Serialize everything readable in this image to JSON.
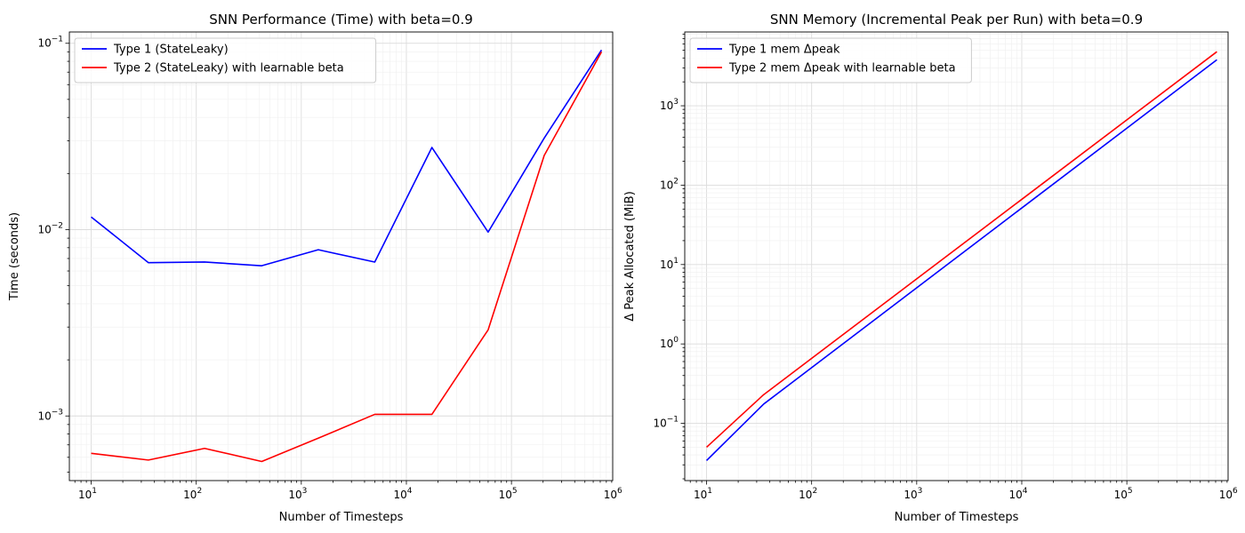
{
  "chart_data": [
    {
      "type": "line",
      "title": "SNN Performance (Time) with beta=0.9",
      "xlabel": "Number of Timesteps",
      "ylabel": "Time (seconds)",
      "xscale": "log",
      "yscale": "log",
      "xlim": [
        6.2,
        920000
      ],
      "ylim": [
        0.00045,
        0.115
      ],
      "grid": true,
      "legend_position": "top-left",
      "xticks": [
        {
          "value": 10,
          "base": "10",
          "exp": "1"
        },
        {
          "value": 100,
          "base": "10",
          "exp": "2"
        },
        {
          "value": 1000,
          "base": "10",
          "exp": "3"
        },
        {
          "value": 10000,
          "base": "10",
          "exp": "4"
        },
        {
          "value": 100000,
          "base": "10",
          "exp": "5"
        },
        {
          "value": 1000000,
          "base": "10",
          "exp": "6"
        }
      ],
      "yticks": [
        {
          "value": 0.001,
          "base": "10",
          "exp": "−3"
        },
        {
          "value": 0.01,
          "base": "10",
          "exp": "−2"
        },
        {
          "value": 0.1,
          "base": "10",
          "exp": "−1"
        }
      ],
      "series": [
        {
          "name": "Type 1 (StateLeaky)",
          "color": "#0000ff",
          "x": [
            10,
            35,
            120,
            420,
            1450,
            5000,
            17500,
            60000,
            205000,
            720000
          ],
          "y": [
            0.0117,
            0.00665,
            0.0067,
            0.0064,
            0.0078,
            0.0067,
            0.0276,
            0.0097,
            0.031,
            0.092
          ]
        },
        {
          "name": "Type 2 (StateLeaky) with learnable beta",
          "color": "#ff0000",
          "x": [
            10,
            35,
            120,
            420,
            1450,
            5000,
            17500,
            60000,
            205000,
            720000
          ],
          "y": [
            0.00063,
            0.00058,
            0.00067,
            0.00057,
            0.00076,
            0.00102,
            0.00102,
            0.0029,
            0.025,
            0.09
          ]
        }
      ]
    },
    {
      "type": "line",
      "title": "SNN Memory (Incremental Peak per Run) with beta=0.9",
      "xlabel": "Number of Timesteps",
      "ylabel": "Δ Peak Allocated (MiB)",
      "xscale": "log",
      "yscale": "log",
      "xlim": [
        6.2,
        920000
      ],
      "ylim": [
        0.019,
        8500
      ],
      "grid": true,
      "legend_position": "top-left",
      "xticks": [
        {
          "value": 10,
          "base": "10",
          "exp": "1"
        },
        {
          "value": 100,
          "base": "10",
          "exp": "2"
        },
        {
          "value": 1000,
          "base": "10",
          "exp": "3"
        },
        {
          "value": 10000,
          "base": "10",
          "exp": "4"
        },
        {
          "value": 100000,
          "base": "10",
          "exp": "5"
        },
        {
          "value": 1000000,
          "base": "10",
          "exp": "6"
        }
      ],
      "yticks": [
        {
          "value": 0.1,
          "base": "10",
          "exp": "−1"
        },
        {
          "value": 1,
          "base": "10",
          "exp": "0"
        },
        {
          "value": 10,
          "base": "10",
          "exp": "1"
        },
        {
          "value": 100,
          "base": "10",
          "exp": "2"
        },
        {
          "value": 1000,
          "base": "10",
          "exp": "3"
        }
      ],
      "series": [
        {
          "name": "Type 1 mem Δpeak",
          "color": "#0000ff",
          "x": [
            10,
            35,
            720000
          ],
          "y": [
            0.034,
            0.175,
            3800
          ]
        },
        {
          "name": "Type 2 mem Δpeak with learnable beta",
          "color": "#ff0000",
          "x": [
            10,
            35,
            720000
          ],
          "y": [
            0.05,
            0.23,
            4800
          ]
        }
      ]
    }
  ]
}
